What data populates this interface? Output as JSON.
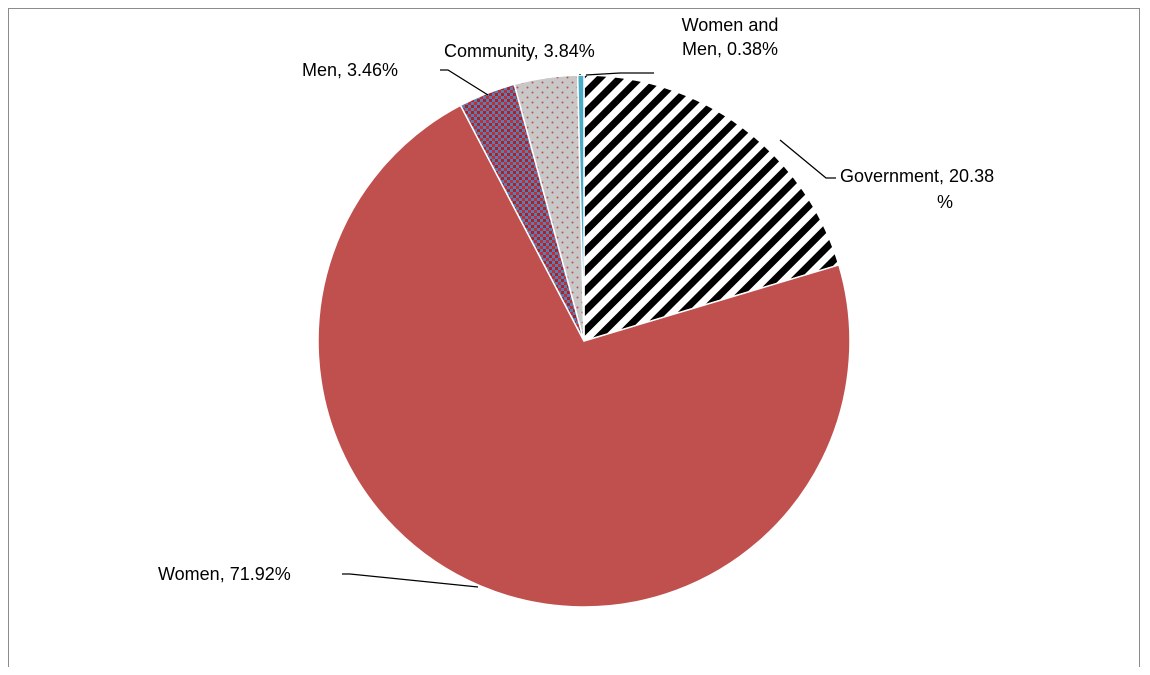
{
  "chart_data": {
    "type": "pie",
    "title": "",
    "start_angle_deg": 0,
    "direction": "clockwise",
    "slices": [
      {
        "name": "Government",
        "value": 20.38,
        "label_lines": [
          "Government, 20.38",
          "%"
        ],
        "color": "#000000",
        "pattern": "diagonal-stripes"
      },
      {
        "name": "Women",
        "value": 71.92,
        "label_lines": [
          "Women, 71.92%"
        ],
        "color": "#c0504d",
        "pattern": "solid"
      },
      {
        "name": "Men",
        "value": 3.46,
        "label_lines": [
          "Men, 3.46%"
        ],
        "color": "#4f81bd",
        "pattern": "red-dotted-grid"
      },
      {
        "name": "Community",
        "value": 3.84,
        "label_lines": [
          "Community, 3.84%"
        ],
        "color": "#c8c8c8",
        "pattern": "red-dots"
      },
      {
        "name": "Women and Men",
        "value": 0.38,
        "label_lines": [
          "Women and",
          "Men, 0.38%"
        ],
        "color": "#4bacc6",
        "pattern": "solid"
      }
    ]
  }
}
